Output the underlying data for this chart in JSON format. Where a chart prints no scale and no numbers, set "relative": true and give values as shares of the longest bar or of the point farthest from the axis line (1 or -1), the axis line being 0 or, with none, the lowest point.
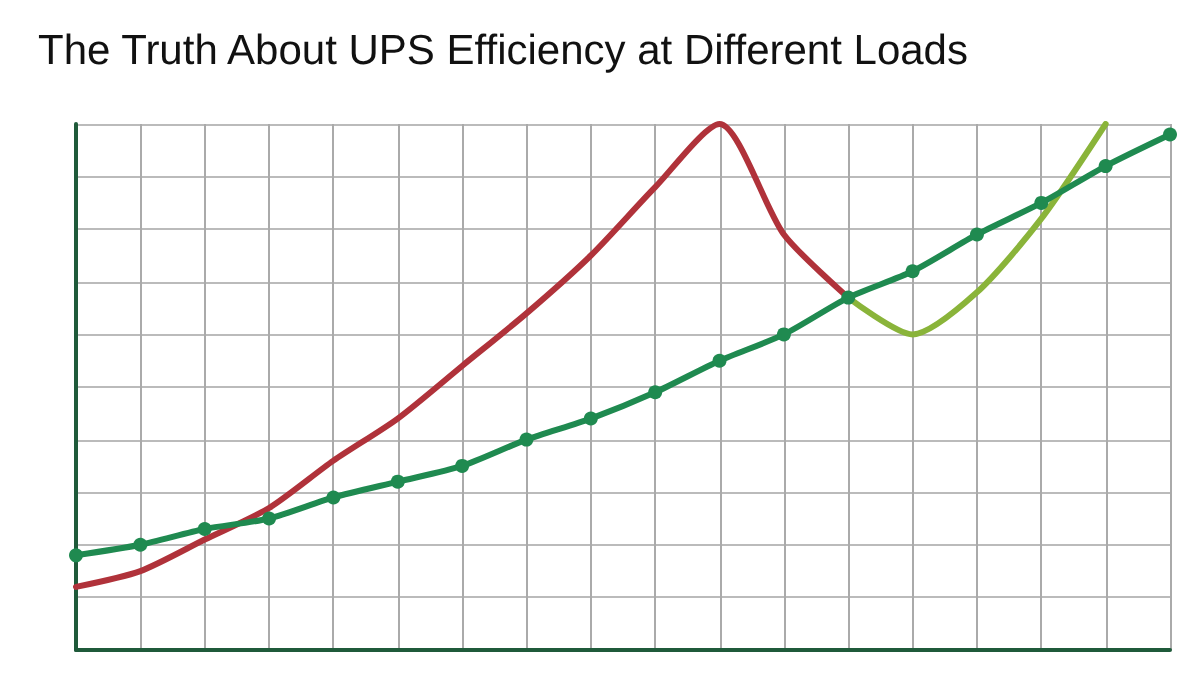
{
  "chart_data": {
    "type": "line",
    "title": "The Truth About UPS Efficiency at Different Loads",
    "relative": true,
    "grid": true,
    "categories": [
      null,
      null,
      null,
      null,
      null,
      null,
      null,
      null,
      null,
      null,
      null,
      null,
      null,
      null,
      null,
      null,
      null,
      null
    ],
    "series": [
      {
        "color": "#b0323a",
        "marker": "none",
        "values": [
          0.12,
          0.15,
          0.21,
          0.27,
          0.36,
          0.44,
          0.54,
          0.64,
          0.75,
          0.88,
          1.0,
          0.79,
          0.67,
          null,
          null,
          null,
          null,
          null
        ]
      },
      {
        "color": "#8ab43a",
        "marker": "none",
        "values": [
          null,
          null,
          null,
          null,
          null,
          null,
          null,
          null,
          null,
          null,
          null,
          null,
          0.67,
          0.6,
          0.68,
          0.82,
          1.0,
          null
        ]
      },
      {
        "color": "#1f8a50",
        "marker": "circle",
        "values": [
          0.18,
          0.2,
          0.23,
          0.25,
          0.29,
          0.32,
          0.35,
          0.4,
          0.44,
          0.49,
          0.55,
          0.6,
          0.67,
          0.72,
          0.79,
          0.85,
          0.92,
          0.98
        ]
      }
    ]
  }
}
